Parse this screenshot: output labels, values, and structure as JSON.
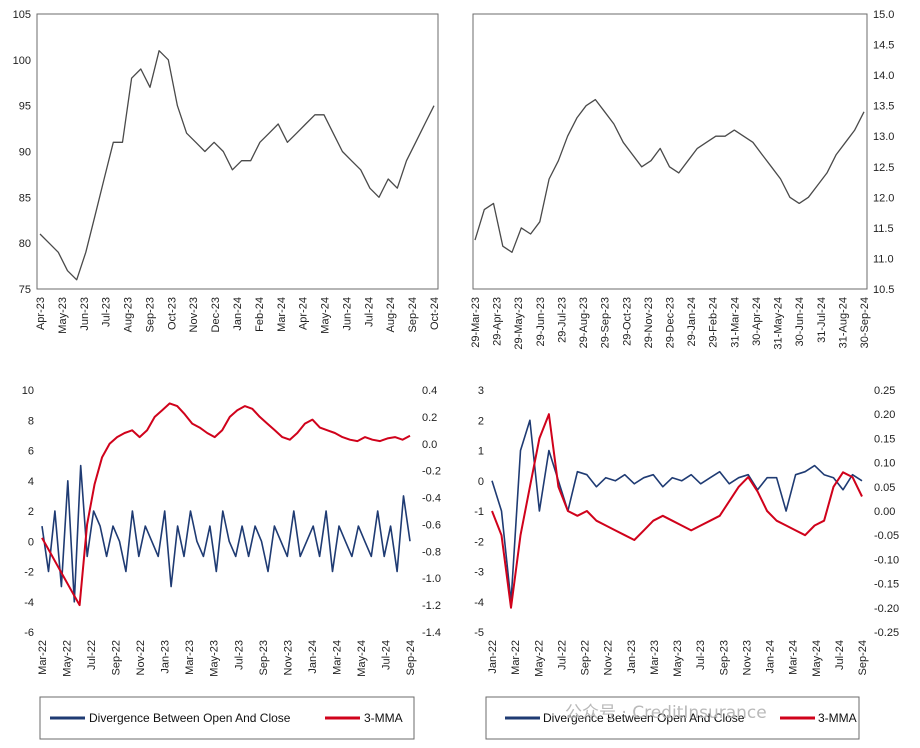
{
  "watermark": "公众号 · CreditInsurance",
  "colors": {
    "grey": "#4a4a4a",
    "navy": "#1f3b73",
    "red": "#d0021b"
  },
  "chart_data": [
    {
      "type": "line",
      "ylim": [
        75,
        105
      ],
      "yticks": [
        "75",
        "80",
        "85",
        "90",
        "95",
        "100",
        "105"
      ],
      "xticks": [
        "Apr-23",
        "May-23",
        "Jun-23",
        "Jul-23",
        "Aug-23",
        "Sep-23",
        "Oct-23",
        "Nov-23",
        "Dec-23",
        "Jan-24",
        "Feb-24",
        "Mar-24",
        "Apr-24",
        "May-24",
        "Jun-24",
        "Jul-24",
        "Aug-24",
        "Sep-24",
        "Oct-24"
      ],
      "grid": false,
      "series": [
        {
          "values": [
            81,
            80,
            79,
            77,
            76,
            79,
            83,
            87,
            91,
            91,
            98,
            99,
            97,
            101,
            100,
            95,
            92,
            91,
            90,
            91,
            90,
            88,
            89,
            89,
            91,
            92,
            93,
            91,
            92,
            93,
            94,
            94,
            92,
            90,
            89,
            88,
            86,
            85,
            87,
            86,
            89,
            91,
            93,
            95
          ]
        }
      ]
    },
    {
      "type": "line",
      "ylim": [
        10.5,
        15.0
      ],
      "yticks": [
        "10.5",
        "11.0",
        "11.5",
        "12.0",
        "12.5",
        "13.0",
        "13.5",
        "14.0",
        "14.5",
        "15.0"
      ],
      "xticks": [
        "29-Mar-23",
        "29-Apr-23",
        "29-May-23",
        "29-Jun-23",
        "29-Jul-23",
        "29-Aug-23",
        "29-Sep-23",
        "29-Oct-23",
        "29-Nov-23",
        "29-Dec-23",
        "29-Jan-24",
        "29-Feb-24",
        "31-Mar-24",
        "30-Apr-24",
        "31-May-24",
        "30-Jun-24",
        "31-Jul-24",
        "31-Aug-24",
        "30-Sep-24"
      ],
      "grid": false,
      "series": [
        {
          "values": [
            11.3,
            11.8,
            11.9,
            11.2,
            11.1,
            11.5,
            11.4,
            11.6,
            12.3,
            12.6,
            13.0,
            13.3,
            13.5,
            13.6,
            13.4,
            13.2,
            12.9,
            12.7,
            12.5,
            12.6,
            12.8,
            12.5,
            12.4,
            12.6,
            12.8,
            12.9,
            13.0,
            13.0,
            13.1,
            13.0,
            12.9,
            12.7,
            12.5,
            12.3,
            12.0,
            11.9,
            12.0,
            12.2,
            12.4,
            12.7,
            12.9,
            13.1,
            13.4
          ]
        }
      ]
    },
    {
      "type": "line",
      "ylim_left": [
        -6,
        10
      ],
      "ylim_right": [
        -1.4,
        0.4
      ],
      "yticks_left": [
        "-6",
        "-4",
        "-2",
        "0",
        "2",
        "4",
        "6",
        "8",
        "10"
      ],
      "yticks_right": [
        "-1.4",
        "-1.2",
        "-1.0",
        "-0.8",
        "-0.6",
        "-0.4",
        "-0.2",
        "0.0",
        "0.2",
        "0.4"
      ],
      "xticks": [
        "Mar-22",
        "May-22",
        "Jul-22",
        "Sep-22",
        "Nov-22",
        "Jan-23",
        "Mar-23",
        "May-23",
        "Jul-23",
        "Sep-23",
        "Nov-23",
        "Jan-24",
        "Mar-24",
        "May-24",
        "Jul-24",
        "Sep-24"
      ],
      "grid": false,
      "legend_position": "bottom",
      "series": [
        {
          "name": "Divergence Between Open And Close",
          "axis": "left",
          "values": [
            1,
            -2,
            2,
            -3,
            4,
            -4,
            5,
            -1,
            2,
            1,
            -1,
            1,
            0,
            -2,
            2,
            -1,
            1,
            0,
            -1,
            2,
            -3,
            1,
            -1,
            2,
            0,
            -1,
            1,
            -2,
            2,
            0,
            -1,
            1,
            -1,
            1,
            0,
            -2,
            1,
            0,
            -1,
            2,
            -1,
            0,
            1,
            -1,
            2,
            -2,
            1,
            0,
            -1,
            1,
            0,
            -1,
            2,
            -1,
            1,
            -2,
            3,
            0
          ]
        },
        {
          "name": "3-MMA",
          "axis": "right",
          "values": [
            -0.7,
            -0.8,
            -0.9,
            -1.0,
            -1.1,
            -1.2,
            -0.6,
            -0.3,
            -0.1,
            0.0,
            0.05,
            0.08,
            0.1,
            0.05,
            0.1,
            0.2,
            0.25,
            0.3,
            0.28,
            0.22,
            0.15,
            0.12,
            0.08,
            0.05,
            0.1,
            0.2,
            0.25,
            0.28,
            0.26,
            0.2,
            0.15,
            0.1,
            0.05,
            0.03,
            0.08,
            0.15,
            0.18,
            0.12,
            0.1,
            0.08,
            0.05,
            0.03,
            0.02,
            0.05,
            0.03,
            0.02,
            0.04,
            0.05,
            0.03,
            0.06
          ]
        }
      ]
    },
    {
      "type": "line",
      "ylim_left": [
        -5,
        3
      ],
      "ylim_right": [
        -0.25,
        0.25
      ],
      "yticks_left": [
        "-5",
        "-4",
        "-3",
        "-2",
        "-1",
        "0",
        "1",
        "2",
        "3"
      ],
      "yticks_right": [
        "-0.25",
        "-0.20",
        "-0.15",
        "-0.10",
        "-0.05",
        "0.00",
        "0.05",
        "0.10",
        "0.15",
        "0.20",
        "0.25"
      ],
      "xticks": [
        "Jan-22",
        "Mar-22",
        "May-22",
        "Jul-22",
        "Sep-22",
        "Nov-22",
        "Jan-23",
        "Mar-23",
        "May-23",
        "Jul-23",
        "Sep-23",
        "Nov-23",
        "Jan-24",
        "Mar-24",
        "May-24",
        "Jul-24",
        "Sep-24"
      ],
      "grid": false,
      "legend_position": "bottom",
      "series": [
        {
          "name": "Divergence Between Open And Close",
          "axis": "left",
          "values": [
            0,
            -1,
            -4,
            1,
            2,
            -1,
            1,
            0,
            -1,
            0.3,
            0.2,
            -0.2,
            0.1,
            0,
            0.2,
            -0.1,
            0.1,
            0.2,
            -0.2,
            0.1,
            0,
            0.2,
            -0.1,
            0.1,
            0.3,
            -0.1,
            0.1,
            0.2,
            -0.3,
            0.1,
            0.1,
            -1,
            0.2,
            0.3,
            0.5,
            0.2,
            0.1,
            -0.3,
            0.2,
            0
          ]
        },
        {
          "name": "3-MMA",
          "axis": "right",
          "values": [
            0.0,
            -0.05,
            -0.2,
            -0.05,
            0.05,
            0.15,
            0.2,
            0.05,
            0.0,
            -0.01,
            0.0,
            -0.02,
            -0.03,
            -0.04,
            -0.05,
            -0.06,
            -0.04,
            -0.02,
            -0.01,
            -0.02,
            -0.03,
            -0.04,
            -0.03,
            -0.02,
            -0.01,
            0.02,
            0.05,
            0.07,
            0.04,
            0.0,
            -0.02,
            -0.03,
            -0.04,
            -0.05,
            -0.03,
            -0.02,
            0.05,
            0.08,
            0.07,
            0.03
          ]
        }
      ]
    }
  ]
}
